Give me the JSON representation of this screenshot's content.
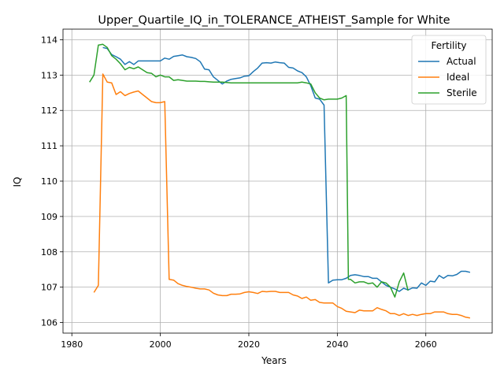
{
  "chart_data": {
    "type": "line",
    "title": "Upper_Quartile_IQ_in_TOLERANCE_ATHEIST_Sample for White",
    "xlabel": "Years",
    "ylabel": "IQ",
    "xlim": [
      1978,
      2075
    ],
    "ylim": [
      105.7,
      114.3
    ],
    "x_ticks": [
      1980,
      2000,
      2020,
      2040,
      2060
    ],
    "y_ticks": [
      106,
      107,
      108,
      109,
      110,
      111,
      112,
      113,
      114
    ],
    "grid": true,
    "legend": {
      "title": "Fertility",
      "placement": "top-right"
    },
    "series": [
      {
        "name": "Actual",
        "color": "#1f77b4",
        "points": [
          [
            1987,
            113.78
          ],
          [
            1988,
            113.75
          ],
          [
            1989,
            113.58
          ],
          [
            1990,
            113.52
          ],
          [
            1991,
            113.45
          ],
          [
            1992,
            113.3
          ],
          [
            1993,
            113.38
          ],
          [
            1994,
            113.3
          ],
          [
            1995,
            113.4
          ],
          [
            1996,
            113.4
          ],
          [
            1997,
            113.4
          ],
          [
            1998,
            113.4
          ],
          [
            1999,
            113.4
          ],
          [
            2000,
            113.4
          ],
          [
            2001,
            113.48
          ],
          [
            2002,
            113.45
          ],
          [
            2003,
            113.53
          ],
          [
            2004,
            113.55
          ],
          [
            2005,
            113.57
          ],
          [
            2006,
            113.52
          ],
          [
            2007,
            113.5
          ],
          [
            2008,
            113.47
          ],
          [
            2009,
            113.38
          ],
          [
            2010,
            113.17
          ],
          [
            2011,
            113.15
          ],
          [
            2012,
            112.95
          ],
          [
            2013,
            112.85
          ],
          [
            2014,
            112.75
          ],
          [
            2015,
            112.83
          ],
          [
            2016,
            112.88
          ],
          [
            2017,
            112.9
          ],
          [
            2018,
            112.92
          ],
          [
            2019,
            112.97
          ],
          [
            2020,
            112.98
          ],
          [
            2021,
            113.1
          ],
          [
            2022,
            113.2
          ],
          [
            2023,
            113.34
          ],
          [
            2024,
            113.35
          ],
          [
            2025,
            113.34
          ],
          [
            2026,
            113.37
          ],
          [
            2027,
            113.35
          ],
          [
            2028,
            113.34
          ],
          [
            2029,
            113.22
          ],
          [
            2030,
            113.2
          ],
          [
            2031,
            113.12
          ],
          [
            2032,
            113.07
          ],
          [
            2033,
            112.95
          ],
          [
            2034,
            112.7
          ],
          [
            2035,
            112.35
          ],
          [
            2036,
            112.32
          ],
          [
            2037,
            112.15
          ],
          [
            2038,
            107.12
          ],
          [
            2039,
            107.2
          ],
          [
            2040,
            107.21
          ],
          [
            2041,
            107.21
          ],
          [
            2042,
            107.25
          ],
          [
            2043,
            107.33
          ],
          [
            2044,
            107.35
          ],
          [
            2045,
            107.33
          ],
          [
            2046,
            107.3
          ],
          [
            2047,
            107.3
          ],
          [
            2048,
            107.25
          ],
          [
            2049,
            107.25
          ],
          [
            2050,
            107.15
          ],
          [
            2051,
            107.05
          ],
          [
            2052,
            107.0
          ],
          [
            2053,
            106.95
          ],
          [
            2054,
            106.88
          ],
          [
            2055,
            106.97
          ],
          [
            2056,
            106.92
          ],
          [
            2057,
            106.98
          ],
          [
            2058,
            106.97
          ],
          [
            2059,
            107.12
          ],
          [
            2060,
            107.05
          ],
          [
            2061,
            107.17
          ],
          [
            2062,
            107.15
          ],
          [
            2063,
            107.33
          ],
          [
            2064,
            107.25
          ],
          [
            2065,
            107.33
          ],
          [
            2066,
            107.32
          ],
          [
            2067,
            107.36
          ],
          [
            2068,
            107.45
          ],
          [
            2069,
            107.45
          ],
          [
            2070,
            107.42
          ]
        ]
      },
      {
        "name": "Ideal",
        "color": "#ff7f0e",
        "points": [
          [
            1985,
            106.85
          ],
          [
            1986,
            107.05
          ],
          [
            1987,
            113.03
          ],
          [
            1988,
            112.8
          ],
          [
            1989,
            112.78
          ],
          [
            1990,
            112.45
          ],
          [
            1991,
            112.53
          ],
          [
            1992,
            112.42
          ],
          [
            1993,
            112.48
          ],
          [
            1994,
            112.52
          ],
          [
            1995,
            112.55
          ],
          [
            1996,
            112.45
          ],
          [
            1997,
            112.35
          ],
          [
            1998,
            112.25
          ],
          [
            1999,
            112.22
          ],
          [
            2000,
            112.22
          ],
          [
            2001,
            112.25
          ],
          [
            2002,
            107.22
          ],
          [
            2003,
            107.2
          ],
          [
            2004,
            107.1
          ],
          [
            2005,
            107.05
          ],
          [
            2006,
            107.02
          ],
          [
            2007,
            107.0
          ],
          [
            2008,
            106.97
          ],
          [
            2009,
            106.95
          ],
          [
            2010,
            106.95
          ],
          [
            2011,
            106.92
          ],
          [
            2012,
            106.83
          ],
          [
            2013,
            106.78
          ],
          [
            2014,
            106.76
          ],
          [
            2015,
            106.76
          ],
          [
            2016,
            106.8
          ],
          [
            2017,
            106.8
          ],
          [
            2018,
            106.81
          ],
          [
            2019,
            106.85
          ],
          [
            2020,
            106.87
          ],
          [
            2021,
            106.85
          ],
          [
            2022,
            106.82
          ],
          [
            2023,
            106.88
          ],
          [
            2024,
            106.87
          ],
          [
            2025,
            106.88
          ],
          [
            2026,
            106.88
          ],
          [
            2027,
            106.85
          ],
          [
            2028,
            106.85
          ],
          [
            2029,
            106.85
          ],
          [
            2030,
            106.78
          ],
          [
            2031,
            106.75
          ],
          [
            2032,
            106.68
          ],
          [
            2033,
            106.72
          ],
          [
            2034,
            106.63
          ],
          [
            2035,
            106.65
          ],
          [
            2036,
            106.57
          ],
          [
            2037,
            106.55
          ],
          [
            2038,
            106.55
          ],
          [
            2039,
            106.55
          ],
          [
            2040,
            106.45
          ],
          [
            2041,
            106.4
          ],
          [
            2042,
            106.32
          ],
          [
            2043,
            106.3
          ],
          [
            2044,
            106.28
          ],
          [
            2045,
            106.35
          ],
          [
            2046,
            106.33
          ],
          [
            2047,
            106.33
          ],
          [
            2048,
            106.33
          ],
          [
            2049,
            106.42
          ],
          [
            2050,
            106.37
          ],
          [
            2051,
            106.33
          ],
          [
            2052,
            106.25
          ],
          [
            2053,
            106.25
          ],
          [
            2054,
            106.2
          ],
          [
            2055,
            106.25
          ],
          [
            2056,
            106.2
          ],
          [
            2057,
            106.23
          ],
          [
            2058,
            106.2
          ],
          [
            2059,
            106.23
          ],
          [
            2060,
            106.25
          ],
          [
            2061,
            106.25
          ],
          [
            2062,
            106.3
          ],
          [
            2063,
            106.3
          ],
          [
            2064,
            106.3
          ],
          [
            2065,
            106.25
          ],
          [
            2066,
            106.23
          ],
          [
            2067,
            106.23
          ],
          [
            2068,
            106.2
          ],
          [
            2069,
            106.15
          ],
          [
            2070,
            106.13
          ]
        ]
      },
      {
        "name": "Sterile",
        "color": "#2ca02c",
        "points": [
          [
            1984,
            112.8
          ],
          [
            1985,
            113.0
          ],
          [
            1986,
            113.85
          ],
          [
            1987,
            113.87
          ],
          [
            1988,
            113.78
          ],
          [
            1989,
            113.55
          ],
          [
            1990,
            113.45
          ],
          [
            1991,
            113.32
          ],
          [
            1992,
            113.15
          ],
          [
            1993,
            113.22
          ],
          [
            1994,
            113.18
          ],
          [
            1995,
            113.23
          ],
          [
            1996,
            113.15
          ],
          [
            1997,
            113.07
          ],
          [
            1998,
            113.05
          ],
          [
            1999,
            112.95
          ],
          [
            2000,
            113.0
          ],
          [
            2001,
            112.95
          ],
          [
            2002,
            112.95
          ],
          [
            2003,
            112.85
          ],
          [
            2004,
            112.87
          ],
          [
            2005,
            112.85
          ],
          [
            2006,
            112.83
          ],
          [
            2007,
            112.83
          ],
          [
            2008,
            112.83
          ],
          [
            2009,
            112.82
          ],
          [
            2010,
            112.82
          ],
          [
            2011,
            112.81
          ],
          [
            2012,
            112.8
          ],
          [
            2013,
            112.8
          ],
          [
            2014,
            112.8
          ],
          [
            2015,
            112.79
          ],
          [
            2016,
            112.78
          ],
          [
            2017,
            112.78
          ],
          [
            2018,
            112.78
          ],
          [
            2019,
            112.78
          ],
          [
            2020,
            112.78
          ],
          [
            2021,
            112.78
          ],
          [
            2022,
            112.78
          ],
          [
            2023,
            112.78
          ],
          [
            2024,
            112.78
          ],
          [
            2025,
            112.78
          ],
          [
            2026,
            112.78
          ],
          [
            2027,
            112.78
          ],
          [
            2028,
            112.78
          ],
          [
            2029,
            112.78
          ],
          [
            2030,
            112.78
          ],
          [
            2031,
            112.78
          ],
          [
            2032,
            112.8
          ],
          [
            2033,
            112.78
          ],
          [
            2034,
            112.75
          ],
          [
            2035,
            112.5
          ],
          [
            2036,
            112.35
          ],
          [
            2037,
            112.3
          ],
          [
            2038,
            112.32
          ],
          [
            2039,
            112.32
          ],
          [
            2040,
            112.32
          ],
          [
            2041,
            112.35
          ],
          [
            2042,
            112.42
          ],
          [
            2042.5,
            107.22
          ],
          [
            2043,
            107.22
          ],
          [
            2044,
            107.12
          ],
          [
            2045,
            107.15
          ],
          [
            2046,
            107.15
          ],
          [
            2047,
            107.1
          ],
          [
            2048,
            107.12
          ],
          [
            2049,
            107.0
          ],
          [
            2050,
            107.15
          ],
          [
            2051,
            107.12
          ],
          [
            2052,
            107.0
          ],
          [
            2053,
            106.72
          ],
          [
            2054,
            107.15
          ],
          [
            2055,
            107.4
          ],
          [
            2056,
            106.9
          ]
        ]
      }
    ]
  }
}
